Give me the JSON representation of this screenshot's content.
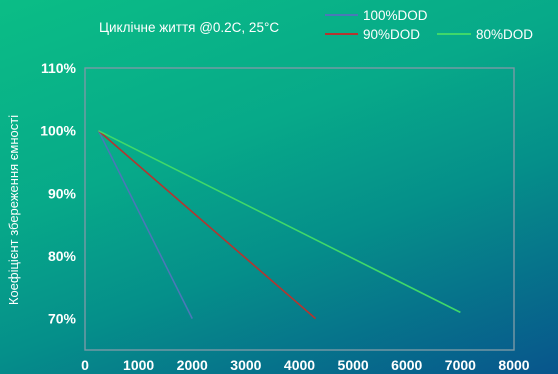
{
  "chart_data": {
    "type": "line",
    "title": "Циклічне життя @0.2C, 25°C",
    "xlabel": "",
    "ylabel": "Коефіцієнт збереження ємності",
    "xlim": [
      0,
      8000
    ],
    "ylim": [
      0.65,
      1.1
    ],
    "x_ticks": [
      "0",
      "1000",
      "2000",
      "3000",
      "4000",
      "5000",
      "6000",
      "7000",
      "8000"
    ],
    "y_ticks": [
      "110%",
      "100%",
      "90%",
      "80%",
      "70%"
    ],
    "y_tick_values": [
      1.1,
      1.0,
      0.9,
      0.8,
      0.7
    ],
    "legend_position": "top-right",
    "grid": false,
    "series": [
      {
        "name": "100%DOD",
        "color": "#4a78b8",
        "x": [
          250,
          2000
        ],
        "y": [
          1.0,
          0.7
        ]
      },
      {
        "name": "90%DOD",
        "color": "#b5352f",
        "x": [
          250,
          4300
        ],
        "y": [
          1.0,
          0.7
        ]
      },
      {
        "name": "80%DOD",
        "color": "#3fd86a",
        "x": [
          250,
          7000
        ],
        "y": [
          1.0,
          0.71
        ]
      }
    ]
  }
}
